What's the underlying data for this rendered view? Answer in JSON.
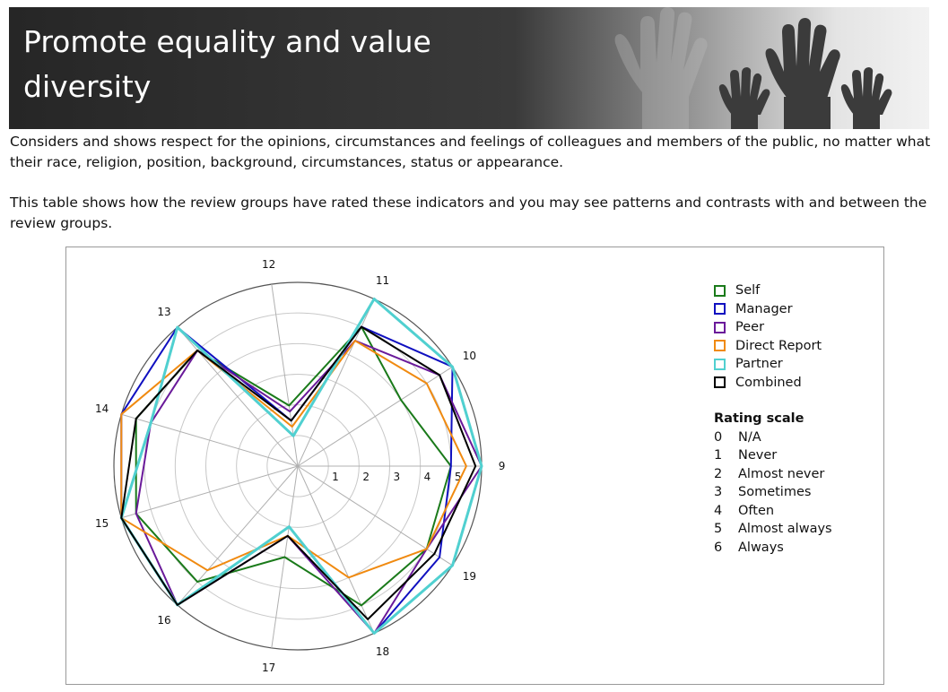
{
  "header": {
    "title_line1": "Promote equality and value",
    "title_line2": "diversity"
  },
  "intro_text": "Considers and shows respect for the opinions, circumstances and feelings of colleagues and members of the public, no matter what their race, religion, position, background, circumstances, status or appearance.",
  "table_text": "This table shows how the review groups have rated these indicators and you may see patterns and contrasts with and between the review groups.",
  "legend_title": "Rating scale",
  "rating_scale": [
    {
      "value": "0",
      "label": "N/A"
    },
    {
      "value": "1",
      "label": "Never"
    },
    {
      "value": "2",
      "label": "Almost never"
    },
    {
      "value": "3",
      "label": "Sometimes"
    },
    {
      "value": "4",
      "label": "Often"
    },
    {
      "value": "5",
      "label": "Almost always"
    },
    {
      "value": "6",
      "label": "Always"
    }
  ],
  "chart_data": {
    "type": "radar",
    "categories": [
      "9",
      "10",
      "11",
      "12",
      "13",
      "14",
      "15",
      "16",
      "17",
      "18",
      "19"
    ],
    "rlim": [
      0,
      6
    ],
    "radial_tick_labels": [
      "1",
      "2",
      "3",
      "4",
      "5"
    ],
    "grid": true,
    "legend_position": "right",
    "series": [
      {
        "name": "Self",
        "color": "#1a7a1a",
        "values": [
          5.0,
          4.0,
          5.0,
          2.0,
          5.0,
          5.5,
          5.5,
          5.0,
          3.0,
          5.0,
          5.0
        ]
      },
      {
        "name": "Manager",
        "color": "#1010c0",
        "values": [
          5.0,
          6.0,
          5.0,
          1.5,
          6.0,
          6.0,
          6.0,
          6.0,
          2.0,
          6.0,
          5.5
        ]
      },
      {
        "name": "Peer",
        "color": "#6a1a9a",
        "values": [
          6.0,
          5.5,
          4.5,
          1.8,
          5.0,
          5.0,
          5.5,
          6.0,
          2.3,
          6.0,
          5.0
        ]
      },
      {
        "name": "Direct Report",
        "color": "#f08a10",
        "values": [
          5.5,
          5.0,
          4.5,
          1.3,
          5.0,
          6.0,
          6.0,
          4.5,
          2.3,
          4.0,
          5.0
        ]
      },
      {
        "name": "Partner",
        "color": "#50d0d0",
        "values": [
          6.0,
          6.0,
          6.0,
          1.0,
          6.0,
          5.0,
          6.0,
          6.0,
          2.0,
          6.0,
          6.0
        ]
      },
      {
        "name": "Combined",
        "color": "#000000",
        "values": [
          5.8,
          5.5,
          5.0,
          1.5,
          5.0,
          5.5,
          6.0,
          6.0,
          2.3,
          5.5,
          5.3
        ]
      }
    ]
  }
}
